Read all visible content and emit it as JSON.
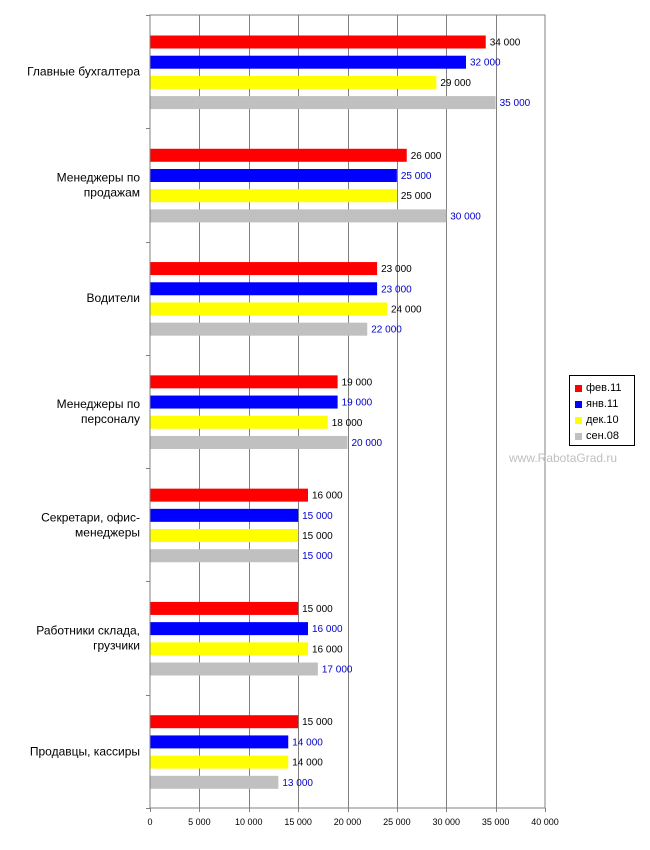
{
  "chart_data": {
    "type": "bar",
    "orientation": "horizontal",
    "categories": [
      "Главные бухгалтера",
      "Менеджеры по продажам",
      "Водители",
      "Менеджеры по персоналу",
      "Секретари, офис-менеджеры",
      "Работники склада, грузчики",
      "Продавцы, кассиры"
    ],
    "category_label_lines": [
      [
        "Главные бухгалтера"
      ],
      [
        "Менеджеры по",
        "продажам"
      ],
      [
        "Водители"
      ],
      [
        "Менеджеры по",
        "персоналу"
      ],
      [
        "Секретари, офис-",
        "менеджеры"
      ],
      [
        "Работники склада,",
        "грузчики"
      ],
      [
        "Продавцы, кассиры"
      ]
    ],
    "series": [
      {
        "name": "фев.11",
        "color": "#ff0000",
        "label_color": "#000000",
        "values": [
          34000,
          26000,
          23000,
          19000,
          16000,
          15000,
          15000
        ],
        "labels": [
          "34 000",
          "26 000",
          "23 000",
          "19 000",
          "16 000",
          "15 000",
          "15 000"
        ]
      },
      {
        "name": "янв.11",
        "color": "#0000ff",
        "label_color": "#0000cc",
        "values": [
          32000,
          25000,
          23000,
          19000,
          15000,
          16000,
          14000
        ],
        "labels": [
          "32 000",
          "25 000",
          "23 000",
          "19 000",
          "15 000",
          "16 000",
          "14 000"
        ]
      },
      {
        "name": "дек.10",
        "color": "#ffff00",
        "label_color": "#000000",
        "values": [
          29000,
          25000,
          24000,
          18000,
          15000,
          16000,
          14000
        ],
        "labels": [
          "29 000",
          "25 000",
          "24 000",
          "18 000",
          "15 000",
          "16 000",
          "14 000"
        ]
      },
      {
        "name": "сен.08",
        "color": "#c0c0c0",
        "label_color": "#0000cc",
        "values": [
          35000,
          30000,
          22000,
          20000,
          15000,
          17000,
          13000
        ],
        "labels": [
          "35 000",
          "30 000",
          "22 000",
          "20 000",
          "15 000",
          "17 000",
          "13 000"
        ]
      }
    ],
    "xlim": [
      0,
      40000
    ],
    "x_ticks": [
      0,
      5000,
      10000,
      15000,
      20000,
      25000,
      30000,
      35000,
      40000
    ],
    "x_tick_labels": [
      "0",
      "5 000",
      "10 000",
      "15 000",
      "20 000",
      "25 000",
      "30 000",
      "35 000",
      "40 000"
    ],
    "grid": "vertical",
    "legend_position": "right",
    "watermark": "www.RabotaGrad.ru"
  }
}
